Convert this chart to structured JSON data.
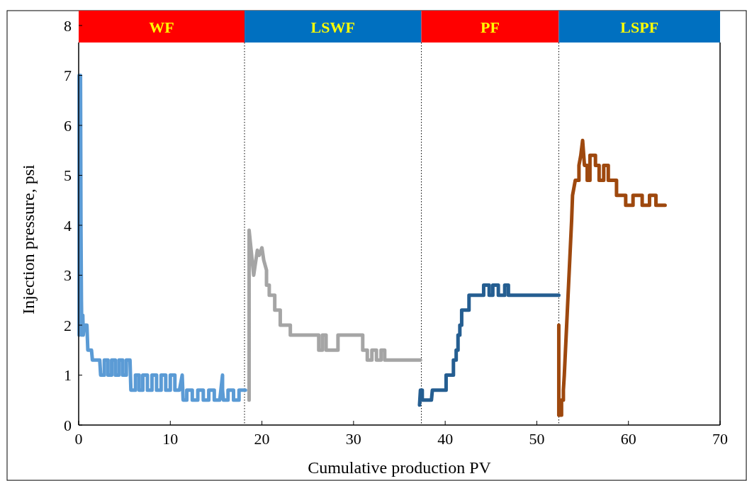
{
  "chart_data": {
    "type": "line",
    "xlabel": "Cumulative production PV",
    "ylabel": "Injection pressure, psi",
    "xlim": [
      0,
      70
    ],
    "ylim": [
      0,
      8
    ],
    "xticks": [
      0,
      10,
      20,
      30,
      40,
      50,
      60,
      70
    ],
    "yticks": [
      0,
      1,
      2,
      3,
      4,
      5,
      6,
      7,
      8
    ],
    "grid": false,
    "marker": "none",
    "line_style": "solid",
    "bands": [
      {
        "axis": "x",
        "from": 0,
        "to": 18.1,
        "label": "WF",
        "color": "#ff0000"
      },
      {
        "axis": "x",
        "from": 18.1,
        "to": 37.4,
        "label": "LSWF",
        "color": "#0070c0"
      },
      {
        "axis": "x",
        "from": 37.4,
        "to": 52.4,
        "label": "PF",
        "color": "#ff0000"
      },
      {
        "axis": "x",
        "from": 52.4,
        "to": 70,
        "label": "LSPF",
        "color": "#0070c0"
      }
    ],
    "ref_lines": [
      {
        "axis": "x",
        "value": 18.1,
        "line_style": "dotted",
        "color": "#000000"
      },
      {
        "axis": "x",
        "value": 37.4,
        "line_style": "dotted",
        "color": "#000000"
      },
      {
        "axis": "x",
        "value": 52.4,
        "line_style": "dotted",
        "color": "#000000"
      }
    ],
    "series": [
      {
        "color": "#5b9bd5",
        "x": [
          0.05,
          0.05,
          0.2,
          0.25,
          0.3,
          0.35,
          0.45,
          0.5,
          0.6,
          0.9,
          1,
          1.4,
          1.5,
          2.3,
          2.4,
          2.8,
          2.8,
          3.2,
          3.2,
          3.6,
          3.6,
          4.0,
          4.0,
          4.4,
          4.4,
          4.8,
          4.8,
          5.2,
          5.2,
          5.6,
          5.7,
          6.2,
          6.2,
          6.6,
          6.6,
          7.0,
          7.0,
          7.5,
          7.5,
          8.0,
          8.0,
          8.5,
          8.5,
          9.0,
          9.0,
          9.5,
          9.5,
          10.0,
          10.0,
          10.5,
          10.5,
          11.0,
          11.3,
          11.4,
          11.8,
          11.8,
          12.4,
          12.4,
          13.0,
          13.0,
          13.6,
          13.6,
          14.2,
          14.2,
          14.8,
          14.8,
          15.4,
          15.7,
          15.7,
          15.8,
          16.3,
          16.3,
          16.9,
          16.9,
          17.5,
          17.5,
          17.8,
          18.2
        ],
        "values": [
          1.8,
          7,
          7,
          4,
          2.5,
          1.8,
          2.2,
          1.8,
          2,
          2,
          1.5,
          1.5,
          1.3,
          1.3,
          1.0,
          1.0,
          1.3,
          1.3,
          1.0,
          1.0,
          1.3,
          1.3,
          1.0,
          1.0,
          1.3,
          1.3,
          1.0,
          1.0,
          1.3,
          1.3,
          0.7,
          0.7,
          1.0,
          1.0,
          0.7,
          0.7,
          1.0,
          1.0,
          0.7,
          0.7,
          1.0,
          1.0,
          0.7,
          0.7,
          1.0,
          1.0,
          0.7,
          0.7,
          1.0,
          1.0,
          0.7,
          0.7,
          1.0,
          0.5,
          0.5,
          0.7,
          0.7,
          0.5,
          0.5,
          0.7,
          0.7,
          0.5,
          0.5,
          0.7,
          0.7,
          0.5,
          0.5,
          1.0,
          0.7,
          0.5,
          0.5,
          0.7,
          0.7,
          0.5,
          0.5,
          0.7,
          0.7,
          0.7
        ]
      },
      {
        "color": "#a5a5a5",
        "x": [
          18.6,
          18.6,
          19.1,
          19.5,
          19.7,
          20.0,
          20.2,
          20.5,
          20.5,
          20.8,
          20.8,
          21.4,
          21.4,
          22.0,
          22.0,
          23.1,
          23.1,
          26.2,
          26.2,
          26.6,
          26.6,
          27.0,
          27.0,
          28.3,
          28.3,
          31.0,
          31.0,
          31.5,
          31.5,
          32.0,
          32.0,
          32.5,
          32.5,
          33.0,
          33.0,
          33.4,
          33.4,
          37.3
        ],
        "values": [
          0.5,
          3.9,
          3.0,
          3.5,
          3.4,
          3.55,
          3.3,
          3.1,
          2.8,
          2.8,
          2.6,
          2.6,
          2.3,
          2.3,
          2.0,
          2.0,
          1.8,
          1.8,
          1.5,
          1.5,
          1.8,
          1.8,
          1.5,
          1.5,
          1.8,
          1.8,
          1.5,
          1.5,
          1.3,
          1.3,
          1.5,
          1.5,
          1.3,
          1.3,
          1.5,
          1.5,
          1.3,
          1.3
        ]
      },
      {
        "color": "#255e91",
        "x": [
          37.2,
          37.3,
          37.5,
          37.5,
          38.5,
          38.6,
          40.1,
          40.1,
          40.9,
          40.9,
          41.2,
          41.2,
          41.4,
          41.4,
          41.6,
          41.6,
          41.8,
          41.8,
          42.6,
          42.6,
          44.2,
          44.2,
          44.8,
          44.8,
          45.2,
          45.2,
          45.8,
          45.8,
          46.5,
          46.5,
          46.9,
          46.9,
          52.4
        ],
        "values": [
          0.4,
          0.7,
          0.7,
          0.5,
          0.5,
          0.7,
          0.7,
          1.0,
          1.0,
          1.3,
          1.3,
          1.5,
          1.5,
          1.8,
          1.8,
          2.0,
          2.0,
          2.3,
          2.3,
          2.6,
          2.6,
          2.8,
          2.8,
          2.6,
          2.6,
          2.8,
          2.8,
          2.6,
          2.6,
          2.8,
          2.8,
          2.6,
          2.6
        ]
      },
      {
        "color": "#9e480e",
        "x": [
          52.4,
          52.4,
          52.7,
          52.7,
          52.9,
          52.9,
          53.0,
          53.8,
          53.9,
          54.2,
          54.6,
          54.6,
          54.8,
          55.0,
          55.2,
          55.5,
          55.5,
          55.8,
          55.8,
          56.4,
          56.4,
          56.8,
          56.8,
          57.3,
          57.3,
          57.8,
          57.8,
          58.7,
          58.7,
          59.7,
          59.7,
          60.5,
          60.5,
          61.5,
          61.5,
          62.3,
          62.3,
          63.0,
          63.0,
          64.0
        ],
        "values": [
          2.0,
          0.2,
          0.2,
          0.5,
          0.5,
          0.7,
          1.0,
          4.1,
          4.6,
          4.9,
          4.9,
          5.2,
          5.4,
          5.7,
          5.2,
          5.2,
          4.9,
          4.9,
          5.4,
          5.4,
          5.2,
          5.2,
          4.9,
          4.9,
          5.2,
          5.2,
          4.9,
          4.9,
          4.6,
          4.6,
          4.4,
          4.4,
          4.6,
          4.6,
          4.4,
          4.4,
          4.6,
          4.6,
          4.4,
          4.4
        ]
      }
    ]
  }
}
